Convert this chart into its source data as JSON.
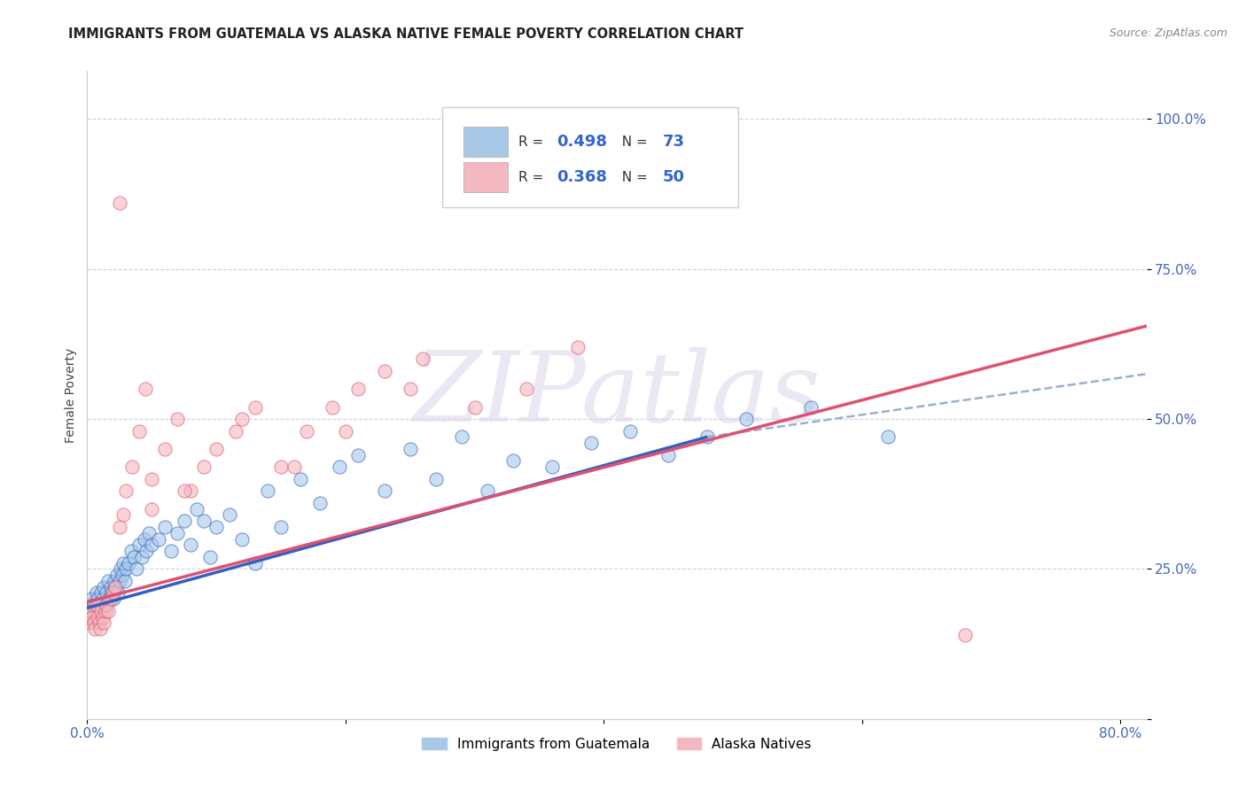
{
  "title": "IMMIGRANTS FROM GUATEMALA VS ALASKA NATIVE FEMALE POVERTY CORRELATION CHART",
  "source": "Source: ZipAtlas.com",
  "ylabel": "Female Poverty",
  "xlim": [
    0.0,
    0.82
  ],
  "ylim": [
    0.0,
    1.08
  ],
  "blue_color": "#a8c8e8",
  "pink_color": "#f4b8c0",
  "blue_line_color": "#3060c0",
  "pink_line_color": "#e05070",
  "dashed_line_color": "#9ab0d0",
  "background_color": "#ffffff",
  "watermark_color": "#d8d0e8",
  "legend_label1": "Immigrants from Guatemala",
  "legend_label2": "Alaska Natives",
  "blue_scatter_x": [
    0.001,
    0.002,
    0.003,
    0.004,
    0.005,
    0.006,
    0.007,
    0.008,
    0.009,
    0.01,
    0.011,
    0.012,
    0.013,
    0.014,
    0.015,
    0.016,
    0.017,
    0.018,
    0.019,
    0.02,
    0.021,
    0.022,
    0.023,
    0.024,
    0.025,
    0.026,
    0.027,
    0.028,
    0.029,
    0.03,
    0.032,
    0.034,
    0.036,
    0.038,
    0.04,
    0.042,
    0.044,
    0.046,
    0.048,
    0.05,
    0.055,
    0.06,
    0.065,
    0.07,
    0.075,
    0.08,
    0.085,
    0.09,
    0.095,
    0.1,
    0.11,
    0.12,
    0.13,
    0.14,
    0.15,
    0.165,
    0.18,
    0.195,
    0.21,
    0.23,
    0.25,
    0.27,
    0.29,
    0.31,
    0.33,
    0.36,
    0.39,
    0.42,
    0.45,
    0.48,
    0.51,
    0.56,
    0.62
  ],
  "blue_scatter_y": [
    0.18,
    0.19,
    0.2,
    0.18,
    0.19,
    0.17,
    0.21,
    0.2,
    0.19,
    0.18,
    0.21,
    0.2,
    0.22,
    0.19,
    0.21,
    0.23,
    0.2,
    0.22,
    0.21,
    0.2,
    0.23,
    0.22,
    0.24,
    0.21,
    0.23,
    0.25,
    0.24,
    0.26,
    0.23,
    0.25,
    0.26,
    0.28,
    0.27,
    0.25,
    0.29,
    0.27,
    0.3,
    0.28,
    0.31,
    0.29,
    0.3,
    0.32,
    0.28,
    0.31,
    0.33,
    0.29,
    0.35,
    0.33,
    0.27,
    0.32,
    0.34,
    0.3,
    0.26,
    0.38,
    0.32,
    0.4,
    0.36,
    0.42,
    0.44,
    0.38,
    0.45,
    0.4,
    0.47,
    0.38,
    0.43,
    0.42,
    0.46,
    0.48,
    0.44,
    0.47,
    0.5,
    0.52,
    0.47
  ],
  "pink_scatter_x": [
    0.001,
    0.002,
    0.003,
    0.004,
    0.005,
    0.006,
    0.007,
    0.008,
    0.009,
    0.01,
    0.011,
    0.012,
    0.013,
    0.014,
    0.015,
    0.016,
    0.018,
    0.02,
    0.022,
    0.025,
    0.028,
    0.03,
    0.035,
    0.04,
    0.045,
    0.05,
    0.06,
    0.07,
    0.08,
    0.09,
    0.1,
    0.115,
    0.13,
    0.15,
    0.17,
    0.19,
    0.21,
    0.23,
    0.26,
    0.3,
    0.34,
    0.38,
    0.05,
    0.075,
    0.12,
    0.16,
    0.2,
    0.25,
    0.68,
    0.025
  ],
  "pink_scatter_y": [
    0.17,
    0.16,
    0.18,
    0.17,
    0.16,
    0.15,
    0.19,
    0.17,
    0.16,
    0.15,
    0.18,
    0.17,
    0.16,
    0.18,
    0.19,
    0.18,
    0.2,
    0.21,
    0.22,
    0.32,
    0.34,
    0.38,
    0.42,
    0.48,
    0.55,
    0.4,
    0.45,
    0.5,
    0.38,
    0.42,
    0.45,
    0.48,
    0.52,
    0.42,
    0.48,
    0.52,
    0.55,
    0.58,
    0.6,
    0.52,
    0.55,
    0.62,
    0.35,
    0.38,
    0.5,
    0.42,
    0.48,
    0.55,
    0.14,
    0.86
  ],
  "blue_line_x": [
    0.0,
    0.48
  ],
  "blue_line_y": [
    0.185,
    0.47
  ],
  "dashed_line_x": [
    0.48,
    0.82
  ],
  "dashed_line_y": [
    0.47,
    0.575
  ],
  "pink_line_x": [
    0.0,
    0.82
  ],
  "pink_line_y": [
    0.195,
    0.655
  ]
}
